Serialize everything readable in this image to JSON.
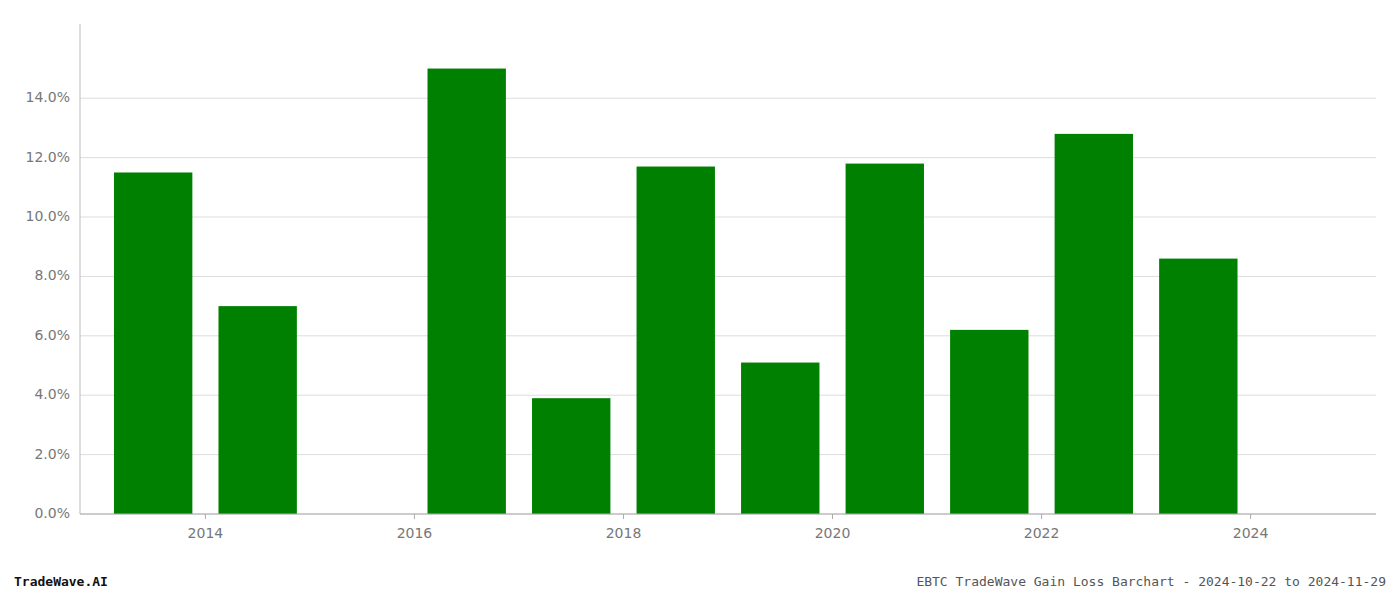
{
  "chart_data": {
    "type": "bar",
    "x": [
      2013,
      2014,
      2016,
      2017,
      2018,
      2019,
      2020,
      2021,
      2022,
      2023
    ],
    "values": [
      0.115,
      0.07,
      0.15,
      0.039,
      0.117,
      0.051,
      0.118,
      0.062,
      0.128,
      0.086
    ],
    "color": "#008000",
    "xlim": [
      2012.3,
      2024.7
    ],
    "xticks": [
      {
        "value": 2013.5,
        "label": "2014"
      },
      {
        "value": 2015.5,
        "label": "2016"
      },
      {
        "value": 2017.5,
        "label": "2018"
      },
      {
        "value": 2019.5,
        "label": "2020"
      },
      {
        "value": 2021.5,
        "label": "2022"
      },
      {
        "value": 2023.5,
        "label": "2024"
      }
    ],
    "ylim": [
      0,
      0.165
    ],
    "yticks": [
      {
        "value": 0.0,
        "label": "0.0%"
      },
      {
        "value": 0.02,
        "label": "2.0%"
      },
      {
        "value": 0.04,
        "label": "4.0%"
      },
      {
        "value": 0.06,
        "label": "6.0%"
      },
      {
        "value": 0.08,
        "label": "8.0%"
      },
      {
        "value": 0.1,
        "label": "10.0%"
      },
      {
        "value": 0.12,
        "label": "12.0%"
      },
      {
        "value": 0.14,
        "label": "14.0%"
      }
    ],
    "grid": true,
    "annotations": [
      "TradeWave.AI",
      "EBTC TradeWave Gain Loss Barchart - 2024-10-22 to 2024-11-29"
    ]
  }
}
